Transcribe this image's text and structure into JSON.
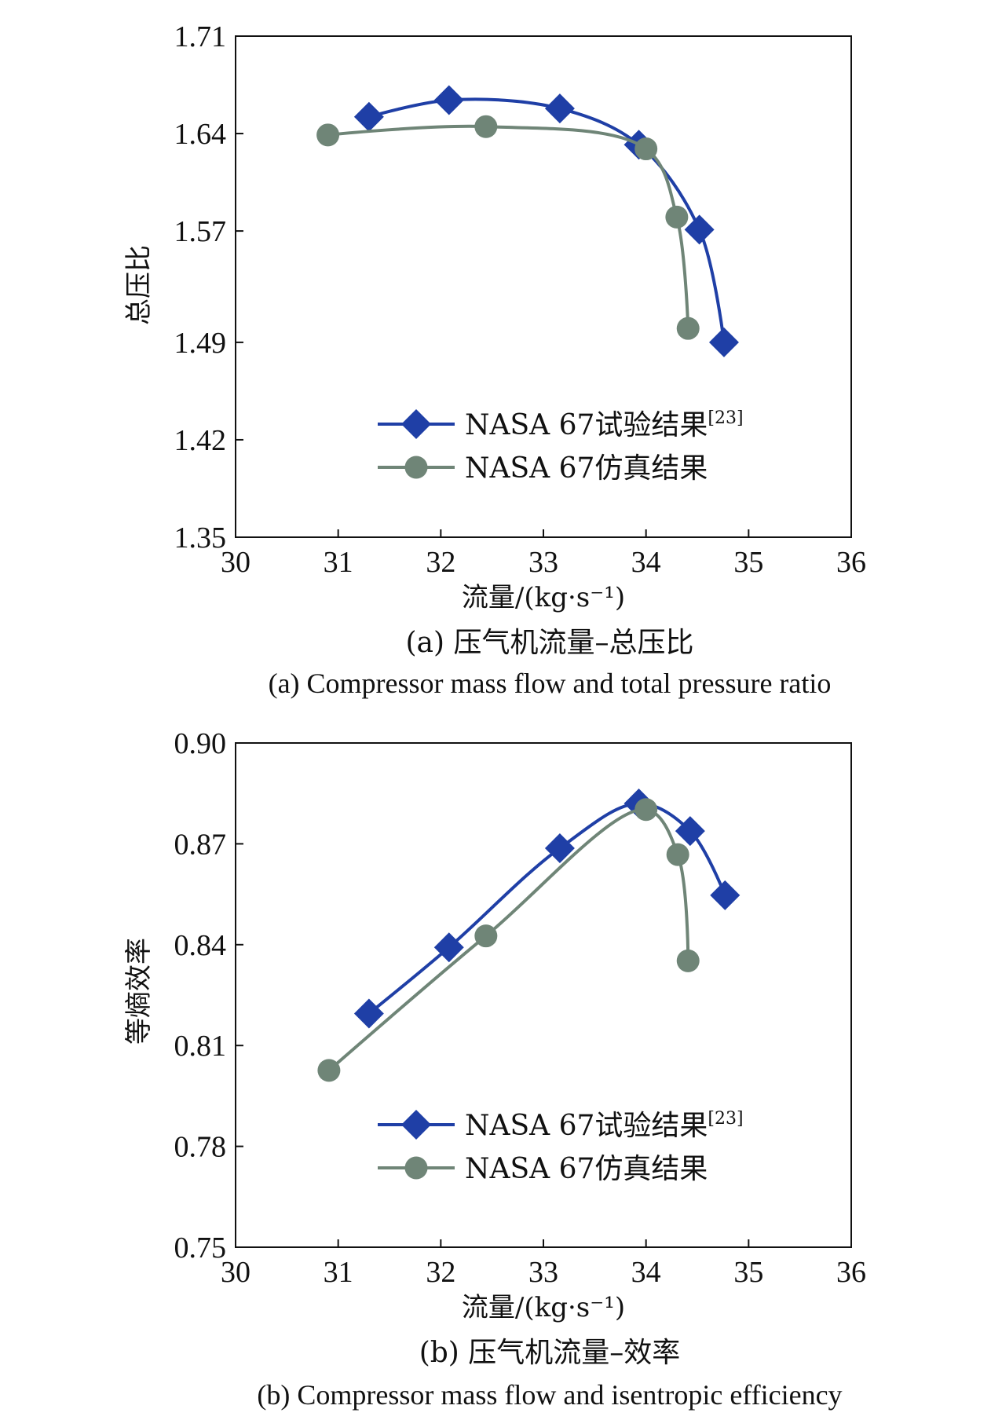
{
  "chart_data": [
    {
      "type": "line",
      "xlabel": "流量/(kg·s⁻¹)",
      "ylabel": "总压比",
      "xlim": [
        30,
        36
      ],
      "ylim": [
        1.35,
        1.71
      ],
      "xticks": [
        "30",
        "31",
        "32",
        "33",
        "34",
        "35",
        "36"
      ],
      "yticks": [
        "1.35",
        "1.42",
        "1.49",
        "1.57",
        "1.64",
        "1.71"
      ],
      "caption_zh": "(a) 压气机流量–总压比",
      "caption_en": "(a) Compressor mass flow and total pressure ratio",
      "legend_position": "lower-center",
      "series": [
        {
          "name": "NASA 67试验结果",
          "name_sup": "[23]",
          "marker": "diamond",
          "color": "#1f3fa6",
          "x": [
            31.3,
            32.08,
            33.16,
            33.93,
            34.52,
            34.76
          ],
          "y": [
            1.652,
            1.664,
            1.658,
            1.632,
            1.571,
            1.49
          ]
        },
        {
          "name": "NASA 67仿真结果",
          "marker": "circle",
          "color": "#6f8577",
          "x": [
            30.9,
            32.44,
            34.0,
            34.3,
            34.41
          ],
          "y": [
            1.639,
            1.645,
            1.629,
            1.58,
            1.5
          ]
        }
      ]
    },
    {
      "type": "line",
      "xlabel": "流量/(kg·s⁻¹)",
      "ylabel": "等熵效率",
      "xlim": [
        30,
        36
      ],
      "ylim": [
        0.75,
        0.9
      ],
      "xticks": [
        "30",
        "31",
        "32",
        "33",
        "34",
        "35",
        "36"
      ],
      "yticks": [
        "0.75",
        "0.78",
        "0.81",
        "0.84",
        "0.87",
        "0.90"
      ],
      "caption_zh": "(b) 压气机流量–效率",
      "caption_en": "(b) Compressor mass flow and isentropic efficiency",
      "legend_position": "lower-center",
      "series": [
        {
          "name": "NASA 67试验结果",
          "name_sup": "[23]",
          "marker": "diamond",
          "color": "#1f3fa6",
          "x": [
            31.3,
            32.08,
            33.16,
            33.93,
            34.43,
            34.77
          ],
          "y": [
            0.8195,
            0.8392,
            0.8687,
            0.882,
            0.8738,
            0.8547
          ]
        },
        {
          "name": "NASA 67仿真结果",
          "marker": "circle",
          "color": "#6f8577",
          "x": [
            30.91,
            32.44,
            34.0,
            34.31,
            34.41
          ],
          "y": [
            0.8026,
            0.8426,
            0.8802,
            0.8668,
            0.8352
          ]
        }
      ]
    }
  ]
}
